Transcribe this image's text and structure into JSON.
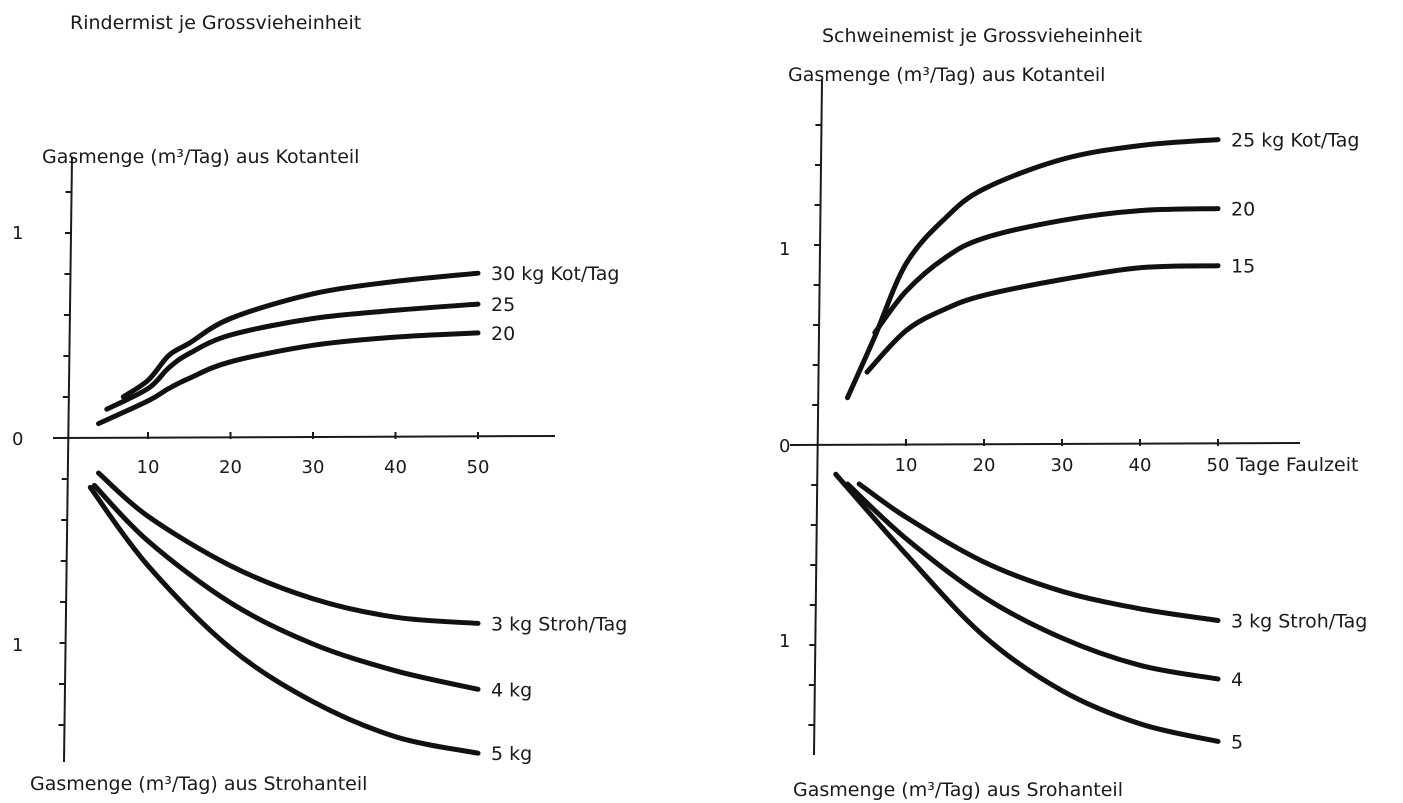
{
  "chart_data": [
    {
      "type": "line",
      "title": "Rindermist je Grossvieheinheit",
      "xticks": [
        "10",
        "20",
        "30",
        "40",
        "50"
      ],
      "xlim": [
        0,
        60
      ],
      "upper": {
        "ylabel": "Gasmenge (m³/Tag) aus Kotanteil",
        "yticks": [
          {
            "v": 0,
            "label": "0"
          },
          {
            "v": 1,
            "label": "1"
          }
        ],
        "ylim": [
          0,
          1.2
        ],
        "series": [
          {
            "name": "30 kg Kot/Tag",
            "x": [
              7,
              10,
              12.5,
              15,
              20,
              30,
              40,
              50
            ],
            "y": [
              0.2,
              0.28,
              0.4,
              0.46,
              0.58,
              0.7,
              0.76,
              0.8
            ]
          },
          {
            "name": "25",
            "x": [
              5,
              10,
              12.5,
              15,
              20,
              30,
              40,
              50
            ],
            "y": [
              0.14,
              0.24,
              0.34,
              0.41,
              0.5,
              0.58,
              0.62,
              0.65
            ]
          },
          {
            "name": "20",
            "x": [
              4,
              10,
              12.5,
              15,
              20,
              30,
              40,
              50
            ],
            "y": [
              0.07,
              0.18,
              0.24,
              0.29,
              0.37,
              0.45,
              0.49,
              0.51
            ]
          }
        ]
      },
      "lower": {
        "ylabel": "Gasmenge (m³/Tag) aus Strohanteil",
        "yticks": [
          {
            "v": 1,
            "label": "1"
          }
        ],
        "series": [
          {
            "name": "3 kg Stroh/Tag",
            "x": [
              4,
              10,
              20,
              30,
              40,
              50
            ],
            "y": [
              0.17,
              0.38,
              0.62,
              0.78,
              0.87,
              0.9
            ]
          },
          {
            "name": "4 kg",
            "x": [
              3.5,
              10,
              20,
              30,
              40,
              50
            ],
            "y": [
              0.23,
              0.5,
              0.8,
              1.0,
              1.13,
              1.22
            ]
          },
          {
            "name": "5 kg",
            "x": [
              3,
              10,
              20,
              30,
              40,
              50
            ],
            "y": [
              0.24,
              0.62,
              1.02,
              1.28,
              1.45,
              1.53
            ]
          }
        ]
      }
    },
    {
      "type": "line",
      "title": "Schweinemist je Grossvieheinheit",
      "xticks": [
        "10",
        "20",
        "30",
        "40",
        "50"
      ],
      "xlabel": "Tage Faulzeit",
      "xlim": [
        0,
        60
      ],
      "upper": {
        "ylabel": "Gasmenge (m³/Tag) aus Kotanteil",
        "yticks": [
          {
            "v": 0,
            "label": "0"
          },
          {
            "v": 1,
            "label": "1"
          }
        ],
        "ylim": [
          0,
          1.85
        ],
        "series": [
          {
            "name": "25 kg Kot/Tag",
            "x": [
              2.5,
              6,
              10,
              15,
              20,
              30,
              40,
              50
            ],
            "y": [
              0.24,
              0.55,
              0.92,
              1.15,
              1.3,
              1.45,
              1.52,
              1.55
            ]
          },
          {
            "name": "20",
            "x": [
              6,
              10,
              15,
              20,
              30,
              40,
              50
            ],
            "y": [
              0.57,
              0.78,
              0.95,
              1.05,
              1.14,
              1.19,
              1.2
            ]
          },
          {
            "name": "15",
            "x": [
              5,
              10,
              15,
              20,
              30,
              40,
              50
            ],
            "y": [
              0.37,
              0.58,
              0.69,
              0.76,
              0.84,
              0.9,
              0.91
            ]
          }
        ]
      },
      "lower": {
        "ylabel": "Gasmenge (m³/Tag) aus Srohanteil",
        "yticks": [
          {
            "v": 1,
            "label": "1"
          }
        ],
        "series": [
          {
            "name": "3 kg Stroh/Tag",
            "x": [
              4,
              10,
              20,
              30,
              40,
              50
            ],
            "y": [
              0.2,
              0.37,
              0.6,
              0.75,
              0.84,
              0.9
            ]
          },
          {
            "name": "4",
            "x": [
              2.5,
              10,
              20,
              30,
              40,
              50
            ],
            "y": [
              0.2,
              0.48,
              0.78,
              0.99,
              1.13,
              1.2
            ]
          },
          {
            "name": "5",
            "x": [
              1,
              10,
              20,
              30,
              40,
              50
            ],
            "y": [
              0.15,
              0.56,
              0.98,
              1.26,
              1.43,
              1.52
            ]
          }
        ]
      }
    }
  ]
}
